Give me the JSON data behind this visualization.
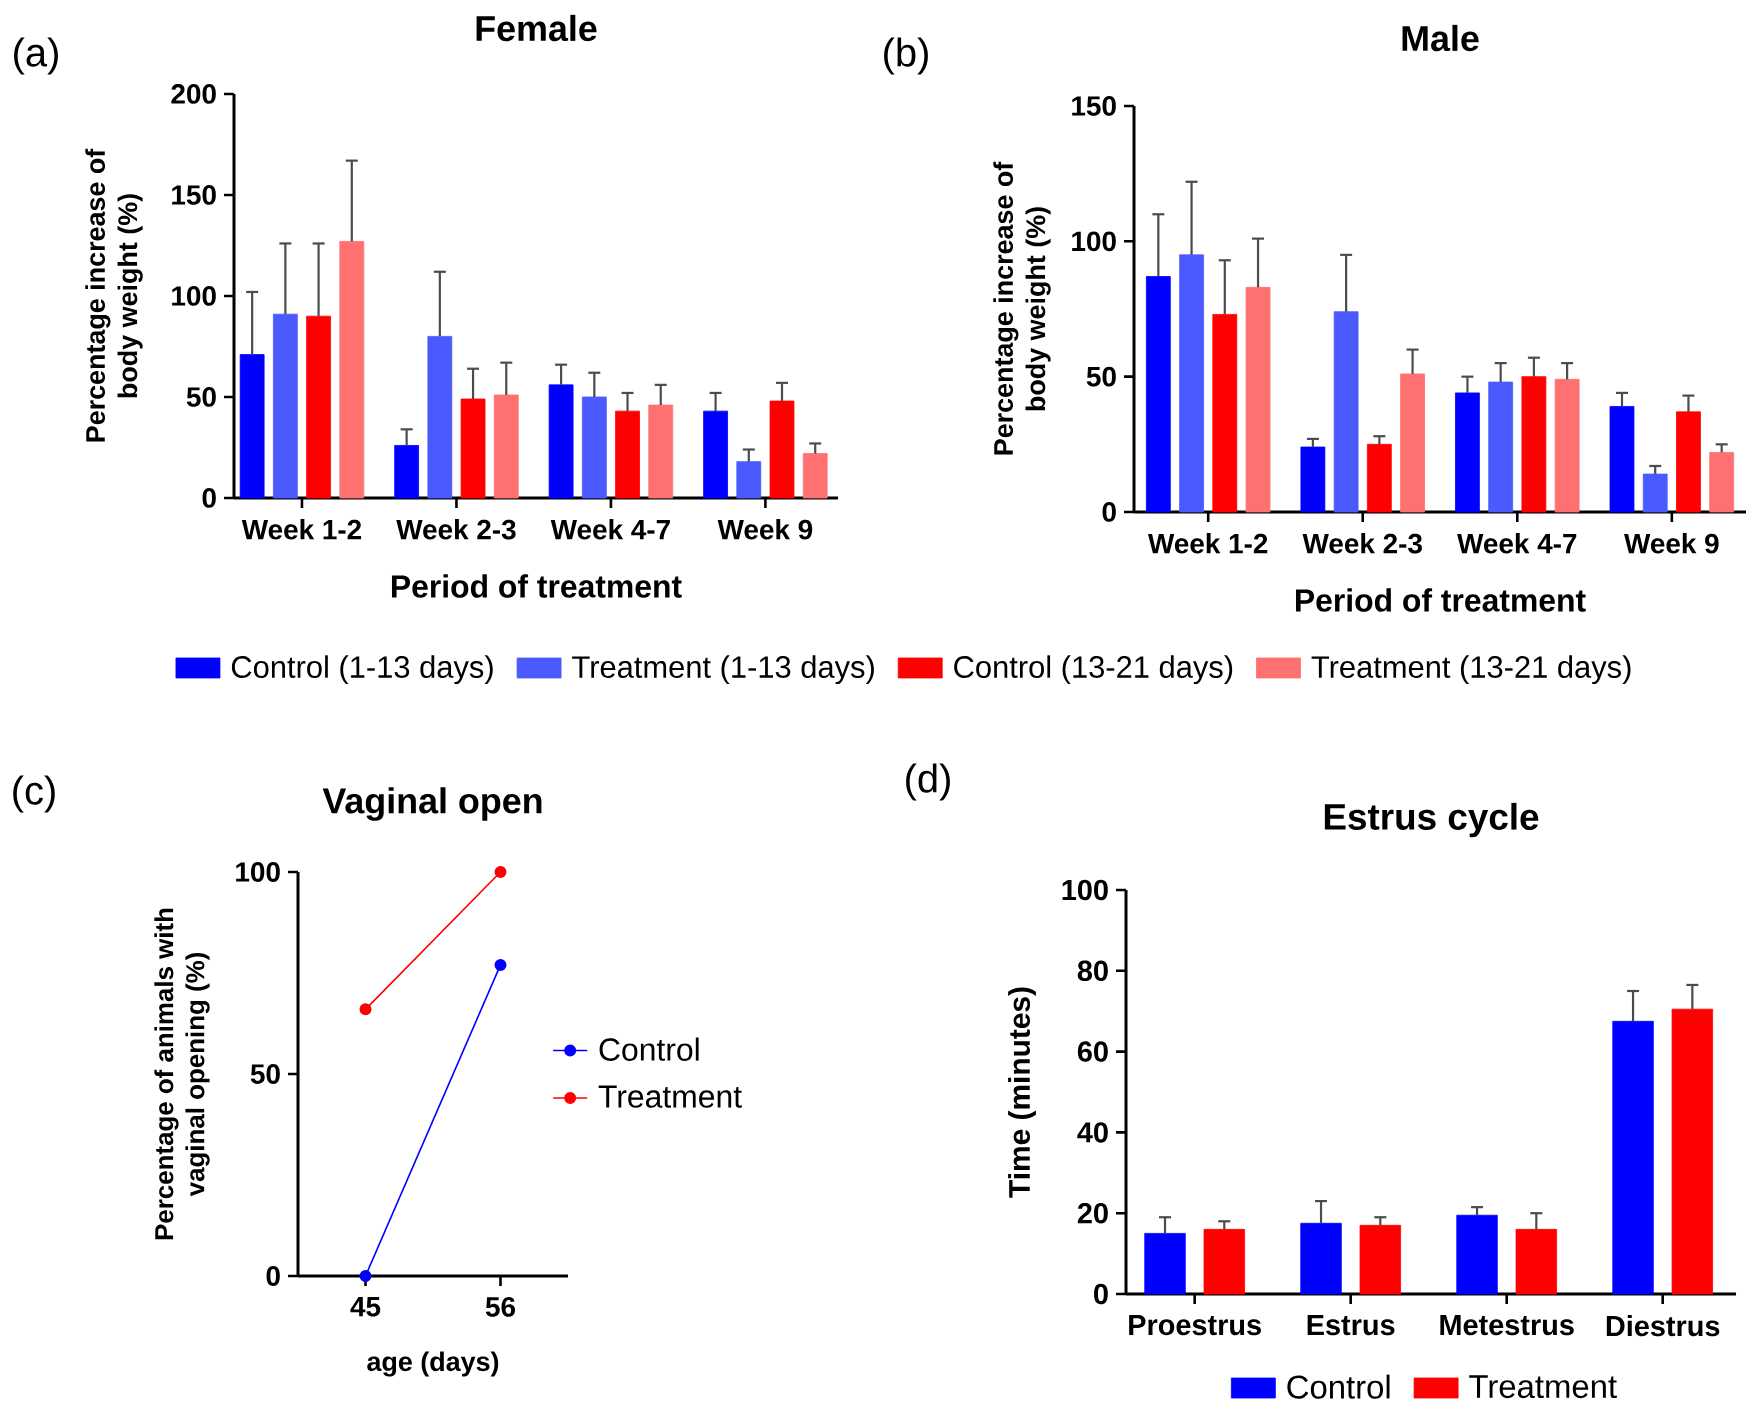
{
  "chart_data": [
    {
      "type": "bar",
      "title": "Female",
      "annotations": [
        "(a)"
      ],
      "xlabel": "Period of treatment",
      "ylabel": "Percentage increase of body weight (%)",
      "categories": [
        "Week 1-2",
        "Week 2-3",
        "Week 4-7",
        "Week 9"
      ],
      "series": [
        {
          "name": "Control (1-13 days)",
          "color": "#0000ff",
          "values": [
            71,
            26,
            56,
            43
          ],
          "errors": [
            [
              71,
              102
            ],
            [
              26,
              34
            ],
            [
              56,
              66
            ],
            [
              43,
              52
            ]
          ]
        },
        {
          "name": "Treatment (1-13 days)",
          "color": "#4a5aff",
          "values": [
            91,
            80,
            50,
            18
          ],
          "errors": [
            [
              91,
              126
            ],
            [
              80,
              112
            ],
            [
              50,
              62
            ],
            [
              18,
              24
            ]
          ]
        },
        {
          "name": "Control (13-21 days)",
          "color": "#ff0000",
          "values": [
            90,
            49,
            43,
            48
          ],
          "errors": [
            [
              90,
              126
            ],
            [
              49,
              64
            ],
            [
              43,
              52
            ],
            [
              48,
              57
            ]
          ]
        },
        {
          "name": "Treatment (13-21 days)",
          "color": "#ff7070",
          "values": [
            127,
            51,
            46,
            22
          ],
          "errors": [
            [
              127,
              167
            ],
            [
              51,
              67
            ],
            [
              46,
              56
            ],
            [
              22,
              27
            ]
          ]
        }
      ],
      "ylim": [
        0,
        200
      ],
      "yticks": [
        0,
        50,
        100,
        150,
        200
      ],
      "legend": "bottom"
    },
    {
      "type": "bar",
      "title": "Male",
      "annotations": [
        "(b)"
      ],
      "xlabel": "Period of treatment",
      "ylabel": "Percentage increase of body weight (%)",
      "categories": [
        "Week 1-2",
        "Week 2-3",
        "Week 4-7",
        "Week 9"
      ],
      "series": [
        {
          "color": "#0000ff",
          "values": [
            87,
            24,
            44,
            39
          ],
          "errors": [
            [
              87,
              110
            ],
            [
              24,
              27
            ],
            [
              44,
              50
            ],
            [
              39,
              44
            ]
          ]
        },
        {
          "color": "#4a5aff",
          "values": [
            95,
            74,
            48,
            14
          ],
          "errors": [
            [
              95,
              122
            ],
            [
              74,
              95
            ],
            [
              48,
              55
            ],
            [
              14,
              17
            ]
          ]
        },
        {
          "color": "#ff0000",
          "values": [
            73,
            25,
            50,
            37
          ],
          "errors": [
            [
              73,
              93
            ],
            [
              25,
              28
            ],
            [
              50,
              57
            ],
            [
              37,
              43
            ]
          ]
        },
        {
          "color": "#ff7070",
          "values": [
            83,
            51,
            49,
            22
          ],
          "errors": [
            [
              83,
              101
            ],
            [
              51,
              60
            ],
            [
              49,
              55
            ],
            [
              22,
              25
            ]
          ]
        }
      ],
      "ylim": [
        0,
        150
      ],
      "yticks": [
        0,
        50,
        100,
        150
      ]
    },
    {
      "type": "line",
      "title": "Vaginal open",
      "annotations": [
        "(c)"
      ],
      "xlabel": "age (days)",
      "ylabel": "Percentage of animals with vaginal opening (%)",
      "x": [
        45,
        56
      ],
      "series": [
        {
          "name": "Control",
          "color": "#0000ff",
          "values": [
            0,
            77
          ]
        },
        {
          "name": "Treatment",
          "color": "#ff0000",
          "values": [
            66,
            100
          ]
        }
      ],
      "xlim": [
        39.5,
        61.5
      ],
      "xticks": [
        45,
        56
      ],
      "ylim": [
        0,
        100
      ],
      "yticks": [
        0,
        50,
        100
      ],
      "legend": "right",
      "marker": "circle"
    },
    {
      "type": "bar",
      "title": "Estrus cycle",
      "annotations": [
        "(d)"
      ],
      "ylabel": "Time (minutes)",
      "categories": [
        "Proestrus",
        "Estrus",
        "Metestrus",
        "Diestrus"
      ],
      "series": [
        {
          "name": "Control",
          "color": "#0000ff",
          "values": [
            15,
            17.5,
            19.5,
            67.5
          ],
          "errors": [
            [
              15,
              19
            ],
            [
              17.5,
              23
            ],
            [
              19.5,
              21.5
            ],
            [
              67.5,
              75
            ]
          ]
        },
        {
          "name": "Treatment",
          "color": "#ff0000",
          "values": [
            16,
            17,
            16,
            70.5
          ],
          "errors": [
            [
              16,
              18
            ],
            [
              17,
              19
            ],
            [
              16,
              20
            ],
            [
              70.5,
              76.5
            ]
          ]
        }
      ],
      "ylim": [
        0,
        100
      ],
      "yticks": [
        0,
        20,
        40,
        60,
        80,
        100
      ],
      "legend": "bottom"
    }
  ]
}
